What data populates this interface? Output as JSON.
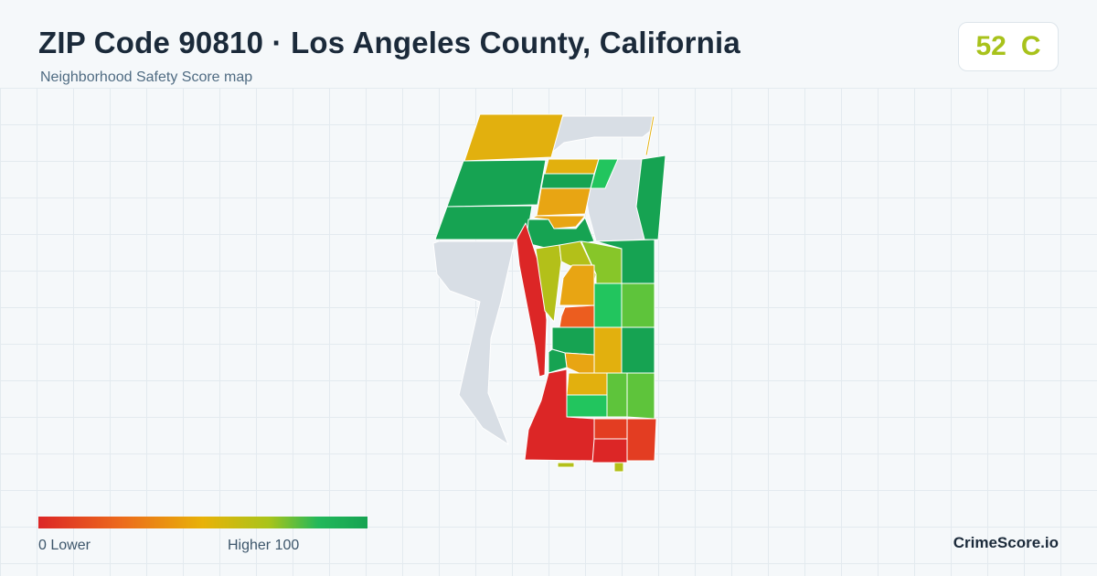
{
  "header": {
    "title": "ZIP Code 90810 · Los Angeles County, California",
    "subtitle": "Neighborhood Safety Score map"
  },
  "score": {
    "value": "52",
    "grade": "C",
    "color": "#a8c21b"
  },
  "legend": {
    "low_label": "0  Lower",
    "high_label": "Higher  100",
    "min": 0,
    "max": 100,
    "gradient_colors": [
      "#dc2626",
      "#ec6a1c",
      "#e8b208",
      "#a9c41a",
      "#22b85a",
      "#16a352"
    ]
  },
  "map": {
    "no_data_color": "#d8dee5",
    "border_color": "#ffffff",
    "color_scale": {
      "red": "#dc2626",
      "red_orange": "#e33d22",
      "orange_red": "#ec5d1f",
      "orange": "#ee8a18",
      "amber": "#e8a513",
      "gold": "#e2b00e",
      "yellow_green": "#b3c019",
      "lime": "#87c629",
      "light_green": "#5ec43b",
      "green": "#22c55e",
      "dark_green": "#16a352"
    }
  },
  "brand": {
    "name": "CrimeScore.io"
  }
}
